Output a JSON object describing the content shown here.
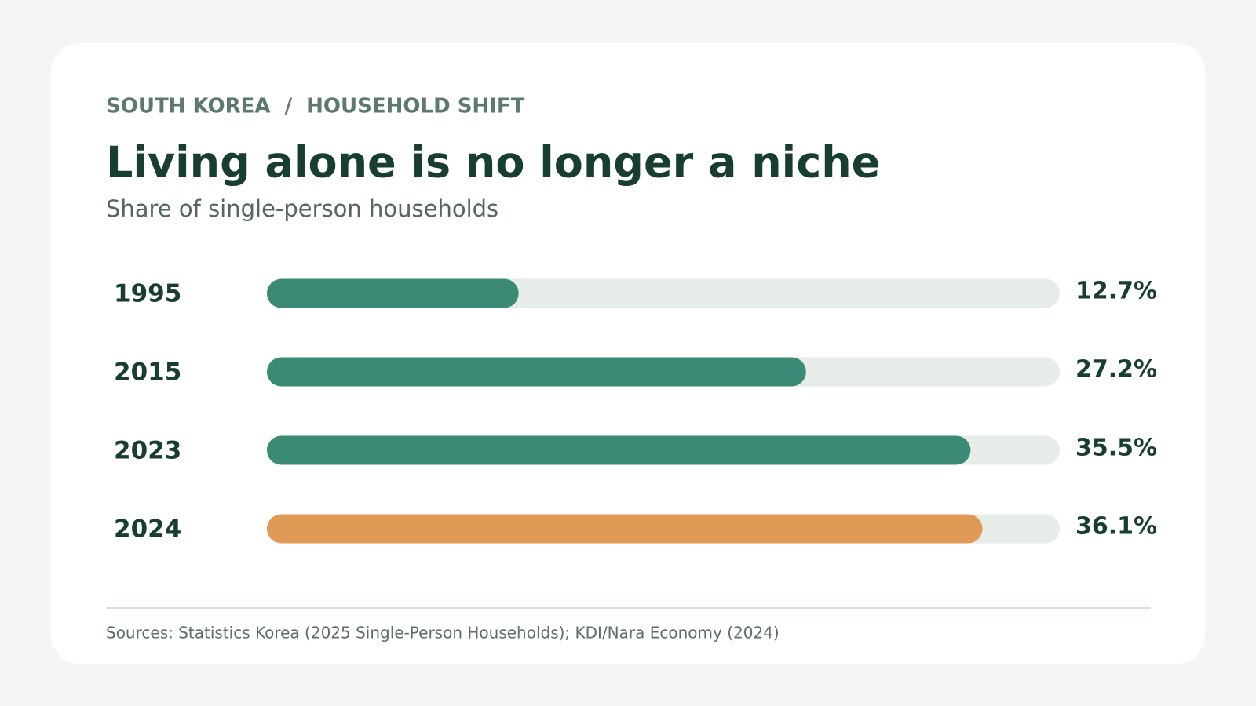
{
  "chart_data": {
    "type": "bar",
    "orientation": "horizontal",
    "eyebrow": "SOUTH KOREA  /  HOUSEHOLD SHIFT",
    "title": "Living alone is no longer a niche",
    "subtitle": "Share of single-person households",
    "categories": [
      "1995",
      "2015",
      "2023",
      "2024"
    ],
    "values": [
      12.7,
      27.2,
      35.5,
      36.1
    ],
    "value_labels": [
      "12.7%",
      "27.2%",
      "35.5%",
      "36.1%"
    ],
    "colors": [
      "#3a8a76",
      "#3a8a76",
      "#3a8a76",
      "#e09a55"
    ],
    "track_color": "#e6ece7",
    "xlim": [
      0,
      40
    ],
    "source": "Sources: Statistics Korea (2025 Single-Person Households); KDI/Nara Economy (2024)"
  }
}
